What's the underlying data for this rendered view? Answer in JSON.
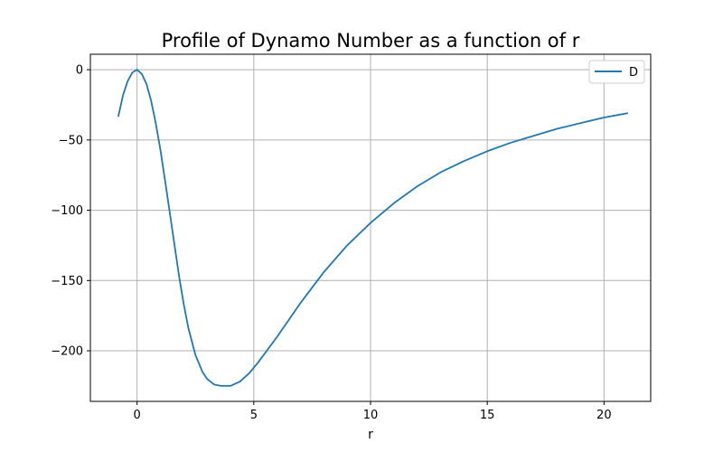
{
  "chart_data": {
    "type": "line",
    "title": "Profile of Dynamo Number as a function of r",
    "xlabel": "r",
    "ylabel": "",
    "xlim": [
      -2.0,
      22.0
    ],
    "ylim": [
      -236,
      11
    ],
    "xticks": [
      0,
      5,
      10,
      15,
      20
    ],
    "xtick_labels": [
      "0",
      "5",
      "10",
      "15",
      "20"
    ],
    "yticks": [
      0,
      -50,
      -100,
      -150,
      -200
    ],
    "ytick_labels": [
      "0",
      "−50",
      "−100",
      "−150",
      "−200"
    ],
    "grid": true,
    "legend_position": "top-right",
    "series": [
      {
        "name": "D",
        "color": "#1f77b4",
        "x": [
          -0.8,
          -0.6,
          -0.4,
          -0.2,
          0.0,
          0.2,
          0.4,
          0.6,
          0.8,
          1.0,
          1.2,
          1.5,
          1.8,
          2.0,
          2.2,
          2.5,
          2.8,
          3.0,
          3.3,
          3.6,
          4.0,
          4.4,
          4.8,
          5.2,
          5.6,
          6.0,
          7.0,
          8.0,
          9.0,
          10.0,
          11.0,
          12.0,
          13.0,
          14.0,
          15.0,
          16.0,
          17.0,
          18.0,
          19.0,
          20.0,
          21.0
        ],
        "y": [
          -33,
          -18,
          -8,
          -2,
          0,
          -3,
          -10,
          -22,
          -38,
          -57,
          -79,
          -113,
          -147,
          -167,
          -184,
          -203,
          -215,
          -220,
          -224,
          -225,
          -225,
          -222,
          -216,
          -208,
          -199,
          -190,
          -166,
          -144,
          -125,
          -109,
          -95,
          -83,
          -73,
          -65,
          -58,
          -52,
          -47,
          -42,
          -38,
          -34,
          -31
        ]
      }
    ]
  }
}
